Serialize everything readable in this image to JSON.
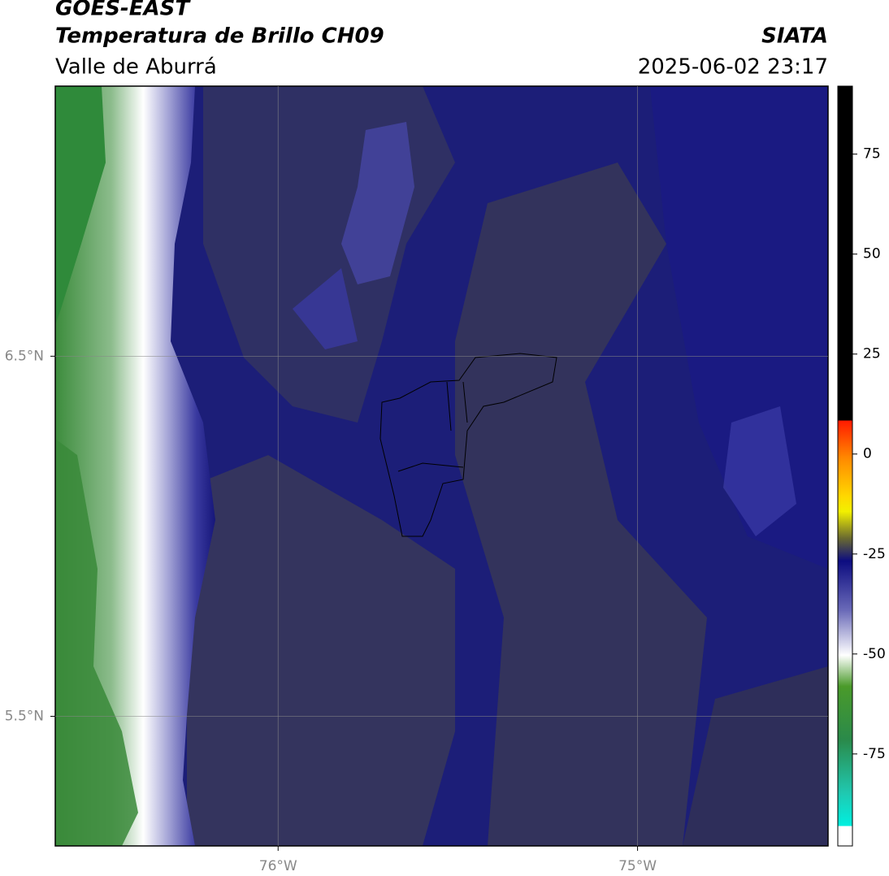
{
  "header": {
    "title": "GOES-EAST",
    "subtitle": "Temperatura de Brillo CH09",
    "region": "Valle de Aburrá",
    "agency": "SIATA",
    "timestamp": "2025-06-02 23:17"
  },
  "map": {
    "lon_lim": [
      -76.62,
      -74.47
    ],
    "lat_lim": [
      5.14,
      7.25
    ],
    "lon_ticks": [
      {
        "value": -76,
        "label": "76°W"
      },
      {
        "value": -75,
        "label": "75°W"
      }
    ],
    "lat_ticks": [
      {
        "value": 6.5,
        "label": "6.5°N"
      },
      {
        "value": 5.5,
        "label": "5.5°N"
      }
    ]
  },
  "colorbar": {
    "lim": [
      -98,
      92
    ],
    "ticks": [
      -75,
      -50,
      -25,
      0,
      25,
      50,
      75
    ]
  }
}
